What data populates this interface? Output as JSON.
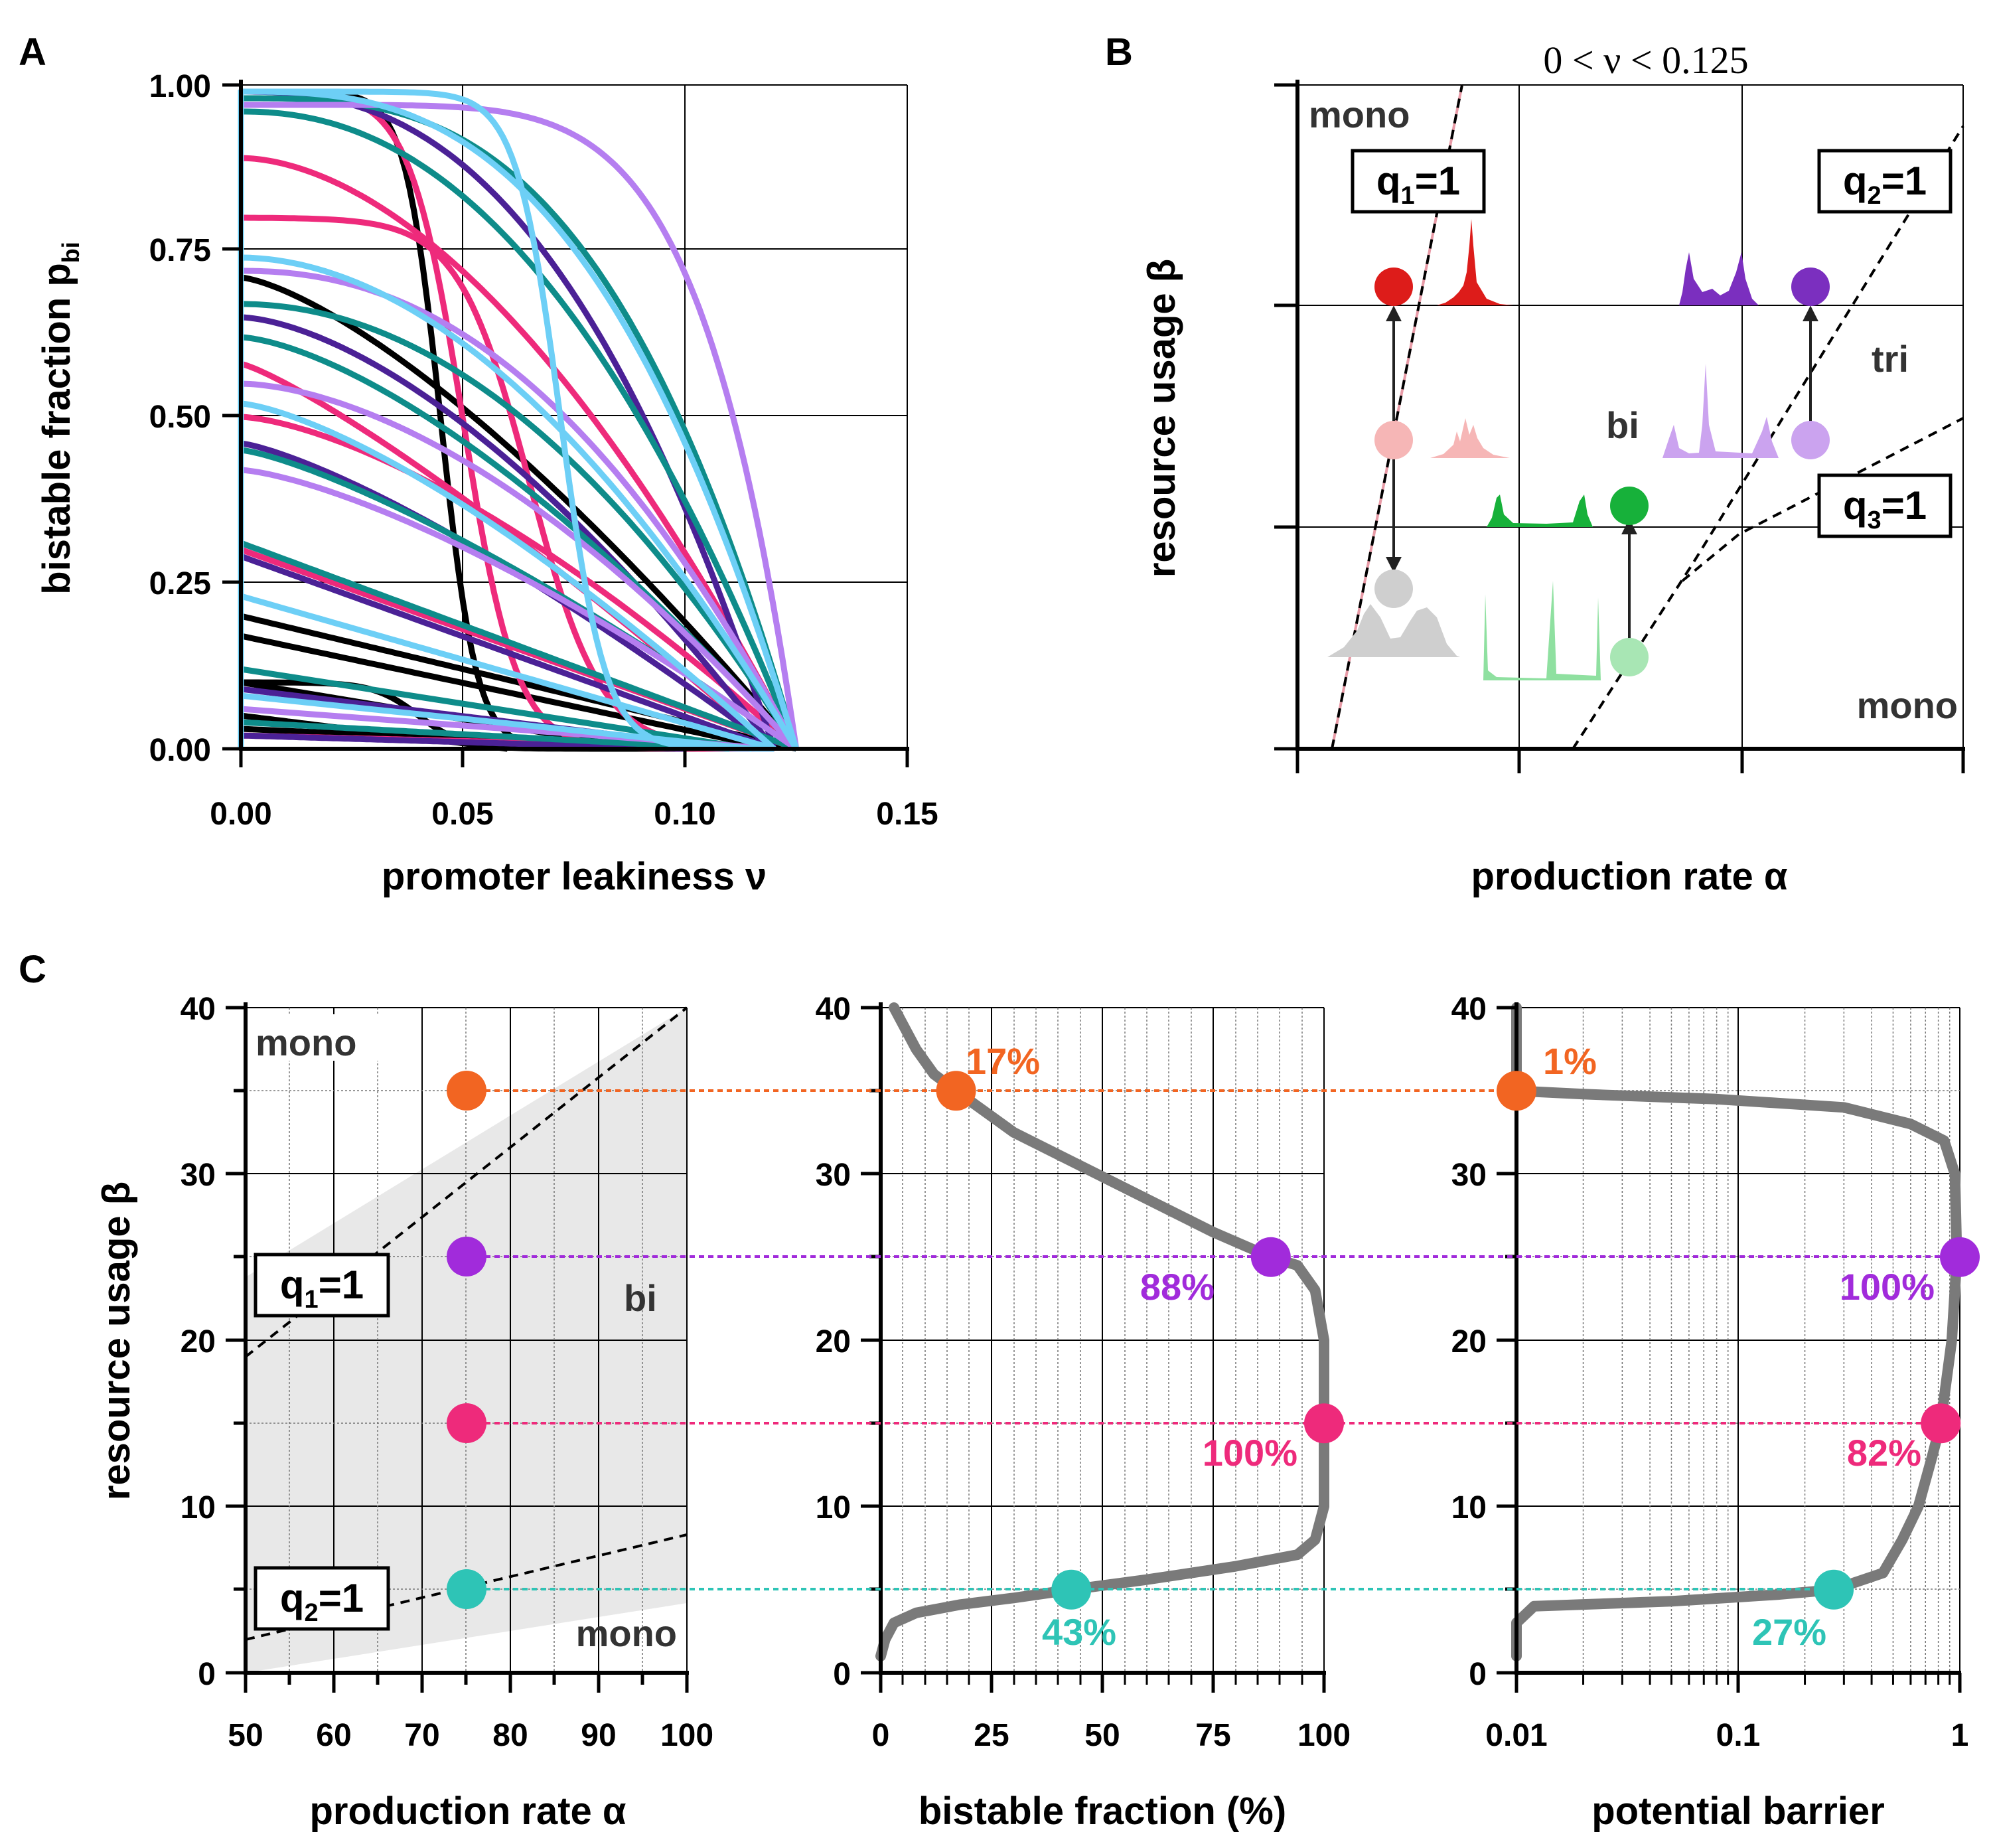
{
  "panels": {
    "A": {
      "label": "A",
      "xlabel": "promoter leakiness ν",
      "ylabel_main": "bistable fraction p",
      "ylabel_sub": "bi",
      "xticks": [
        "0.00",
        "0.05",
        "0.10",
        "0.15"
      ],
      "yticks": [
        "0.00",
        "0.25",
        "0.50",
        "0.75",
        "1.00"
      ]
    },
    "B": {
      "label": "B",
      "title": "0 < ν < 0.125",
      "xlabel": "production rate α",
      "ylabel": "resource usage β",
      "region_mono_top": "mono",
      "region_mono_bottom": "mono",
      "region_bi": "bi",
      "region_tri": "tri",
      "q1": "q",
      "q1_sub": "1",
      "q2": "q",
      "q2_sub": "2",
      "q3": "q",
      "q3_sub": "3",
      "eq": "=1"
    },
    "C": {
      "label": "C",
      "ylabel": "resource usage β",
      "p1_xlabel": "production rate α",
      "p1_xticks": [
        "50",
        "60",
        "70",
        "80",
        "90",
        "100"
      ],
      "p1_mono_top": "mono",
      "p1_mono_bottom": "mono",
      "p1_bi": "bi",
      "q1": "q",
      "q1_sub": "1",
      "q2": "q",
      "q2_sub": "2",
      "eq": "=1",
      "p2_xlabel": "bistable fraction (%)",
      "p2_xticks": [
        "0",
        "25",
        "50",
        "75",
        "100"
      ],
      "p3_xlabel": "potential barrier",
      "p3_xticks": [
        "0.01",
        "0.1",
        "1"
      ],
      "yticks": [
        "0",
        "10",
        "20",
        "30",
        "40"
      ],
      "bf_labels": [
        "17%",
        "88%",
        "100%",
        "43%"
      ],
      "pb_labels": [
        "1%",
        "100%",
        "82%",
        "27%"
      ]
    }
  },
  "colors": {
    "orange": "#f26522",
    "purple": "#a12bdb",
    "pink": "#ee2a7b",
    "teal": "#2ec4b6",
    "gray_curve": "#7a7a7a",
    "teal_curve": "#0e8c8a",
    "lilac": "#b57ef0",
    "skyblue": "#6dcff6",
    "navy_purple": "#4b2196",
    "red": "#dd1c1a",
    "green": "#17b13a"
  },
  "chart_data": [
    {
      "panel": "A",
      "type": "line",
      "title": "",
      "xlabel": "promoter leakiness ν",
      "ylabel": "bistable fraction p_bi",
      "xlim": [
        0,
        0.15
      ],
      "ylim": [
        0,
        1
      ],
      "grid": true,
      "series": [
        {
          "color": "black",
          "start": 0.99,
          "mode": "sigmoid",
          "mid": 0.045,
          "w": 0.004
        },
        {
          "color": "black",
          "start": 0.71,
          "mode": "decay",
          "end": 0.125,
          "shape": 1.4
        },
        {
          "color": "black",
          "start": 0.2,
          "mode": "linear",
          "end": 0.125
        },
        {
          "color": "black",
          "start": 0.17,
          "mode": "linear",
          "end": 0.12
        },
        {
          "color": "black",
          "start": 0.1,
          "mode": "linear",
          "end": 0.09
        },
        {
          "color": "black",
          "start": 0.05,
          "mode": "linear",
          "end": 0.06
        },
        {
          "color": "black",
          "start": 0.03,
          "mode": "linear",
          "end": 0.1
        },
        {
          "color": "black",
          "start": 0.1,
          "mode": "sigmoid",
          "mid": 0.04,
          "w": 0.005
        },
        {
          "color": "pink",
          "start": 0.99,
          "mode": "sigmoid",
          "mid": 0.05,
          "w": 0.006
        },
        {
          "color": "pink",
          "start": 0.89,
          "mode": "decay",
          "end": 0.125,
          "shape": 1.8
        },
        {
          "color": "pink",
          "start": 0.8,
          "mode": "sigmoid",
          "mid": 0.065,
          "w": 0.008
        },
        {
          "color": "pink",
          "start": 0.58,
          "mode": "decay",
          "end": 0.12,
          "shape": 1.2
        },
        {
          "color": "pink",
          "start": 0.5,
          "mode": "decay",
          "end": 0.125,
          "shape": 1.5
        },
        {
          "color": "pink",
          "start": 0.3,
          "mode": "linear",
          "end": 0.125
        },
        {
          "color": "pink",
          "start": 0.02,
          "mode": "linear",
          "end": 0.12
        },
        {
          "color": "navy_purple",
          "start": 0.99,
          "mode": "decay",
          "end": 0.12,
          "shape": 2.5
        },
        {
          "color": "navy_purple",
          "start": 0.65,
          "mode": "decay",
          "end": 0.12,
          "shape": 1.6
        },
        {
          "color": "navy_purple",
          "start": 0.46,
          "mode": "decay",
          "end": 0.12,
          "shape": 1.3
        },
        {
          "color": "navy_purple",
          "start": 0.29,
          "mode": "linear",
          "end": 0.12
        },
        {
          "color": "navy_purple",
          "start": 0.09,
          "mode": "linear",
          "end": 0.11
        },
        {
          "color": "navy_purple",
          "start": 0.02,
          "mode": "linear",
          "end": 0.1
        },
        {
          "color": "teal",
          "start": 0.98,
          "mode": "decay",
          "end": 0.125,
          "shape": 3.0
        },
        {
          "color": "teal",
          "start": 0.96,
          "mode": "decay",
          "end": 0.125,
          "shape": 2.2
        },
        {
          "color": "teal",
          "start": 0.67,
          "mode": "decay",
          "end": 0.125,
          "shape": 2.0
        },
        {
          "color": "teal",
          "start": 0.62,
          "mode": "decay",
          "end": 0.125,
          "shape": 1.5
        },
        {
          "color": "teal",
          "start": 0.45,
          "mode": "decay",
          "end": 0.125,
          "shape": 1.3
        },
        {
          "color": "teal",
          "start": 0.31,
          "mode": "linear",
          "end": 0.125
        },
        {
          "color": "teal",
          "start": 0.12,
          "mode": "linear",
          "end": 0.115
        },
        {
          "color": "teal",
          "start": 0.04,
          "mode": "linear",
          "end": 0.11
        },
        {
          "color": "lilac",
          "start": 0.97,
          "mode": "decay",
          "end": 0.125,
          "shape": 6.0
        },
        {
          "color": "lilac",
          "start": 0.72,
          "mode": "decay",
          "end": 0.125,
          "shape": 2.2
        },
        {
          "color": "lilac",
          "start": 0.55,
          "mode": "decay",
          "end": 0.125,
          "shape": 1.7
        },
        {
          "color": "lilac",
          "start": 0.42,
          "mode": "decay",
          "end": 0.125,
          "shape": 1.4
        },
        {
          "color": "lilac",
          "start": 0.06,
          "mode": "linear",
          "end": 0.12
        },
        {
          "color": "skyblue",
          "start": 0.99,
          "mode": "sigmoid",
          "mid": 0.072,
          "w": 0.005
        },
        {
          "color": "skyblue",
          "start": 0.99,
          "mode": "decay",
          "end": 0.125,
          "shape": 2.8
        },
        {
          "color": "skyblue",
          "start": 0.74,
          "mode": "decay",
          "end": 0.125,
          "shape": 1.9
        },
        {
          "color": "skyblue",
          "start": 0.52,
          "mode": "decay",
          "end": 0.12,
          "shape": 1.4
        },
        {
          "color": "skyblue",
          "start": 0.23,
          "mode": "linear",
          "end": 0.12
        },
        {
          "color": "skyblue",
          "start": 0.08,
          "mode": "linear",
          "end": 0.115
        }
      ]
    },
    {
      "panel": "B",
      "type": "diagram",
      "title": "0 < ν < 0.125",
      "xlabel": "production rate α",
      "ylabel": "resource usage β",
      "regions": [
        "mono",
        "bi",
        "tri",
        "mono"
      ],
      "boundaries": [
        "q1=1",
        "q2=1",
        "q3=1"
      ]
    },
    {
      "panel": "C1",
      "type": "diagram",
      "xlabel": "production rate α",
      "ylabel": "resource usage β",
      "xlim": [
        50,
        100
      ],
      "ylim": [
        0,
        40
      ],
      "q1_line": [
        [
          50,
          19
        ],
        [
          100,
          40
        ]
      ],
      "q2_line": [
        [
          50,
          2
        ],
        [
          100,
          8.3
        ]
      ],
      "points": [
        {
          "alpha": 75,
          "beta": 35,
          "color": "orange"
        },
        {
          "alpha": 75,
          "beta": 25,
          "color": "purple"
        },
        {
          "alpha": 75,
          "beta": 15,
          "color": "pink"
        },
        {
          "alpha": 75,
          "beta": 5,
          "color": "teal"
        }
      ]
    },
    {
      "panel": "C2",
      "type": "line",
      "xlabel": "bistable fraction (%)",
      "ylabel": "resource usage β",
      "xlim": [
        0,
        100
      ],
      "ylim": [
        0,
        40
      ],
      "curve": [
        [
          0,
          1
        ],
        [
          1,
          2
        ],
        [
          3,
          3
        ],
        [
          8,
          3.6
        ],
        [
          18,
          4.1
        ],
        [
          30,
          4.5
        ],
        [
          43,
          5
        ],
        [
          60,
          5.6
        ],
        [
          80,
          6.4
        ],
        [
          94,
          7.1
        ],
        [
          98,
          8
        ],
        [
          100,
          10
        ],
        [
          100,
          20
        ],
        [
          98,
          23
        ],
        [
          94,
          24.5
        ],
        [
          88,
          25
        ],
        [
          75,
          26.5
        ],
        [
          60,
          28.5
        ],
        [
          45,
          30.5
        ],
        [
          30,
          32.5
        ],
        [
          17,
          35
        ],
        [
          12,
          36
        ],
        [
          8,
          37.5
        ],
        [
          5,
          39
        ],
        [
          3,
          40
        ]
      ],
      "points": [
        {
          "x": 17,
          "y": 35,
          "label": "17%",
          "color": "orange"
        },
        {
          "x": 88,
          "y": 25,
          "label": "88%",
          "color": "purple"
        },
        {
          "x": 100,
          "y": 15,
          "label": "100%",
          "color": "pink"
        },
        {
          "x": 43,
          "y": 5,
          "label": "43%",
          "color": "teal"
        }
      ]
    },
    {
      "panel": "C3",
      "type": "line",
      "xscale": "log",
      "xlabel": "potential barrier",
      "ylabel": "resource usage β",
      "xlim": [
        0.01,
        1
      ],
      "ylim": [
        0,
        40
      ],
      "curve": [
        [
          0.01,
          1
        ],
        [
          0.01,
          3
        ],
        [
          0.012,
          4
        ],
        [
          0.05,
          4.3
        ],
        [
          0.15,
          4.7
        ],
        [
          0.27,
          5
        ],
        [
          0.45,
          6
        ],
        [
          0.55,
          8
        ],
        [
          0.65,
          10
        ],
        [
          0.75,
          13
        ],
        [
          0.82,
          15
        ],
        [
          0.92,
          20
        ],
        [
          0.97,
          25
        ],
        [
          0.95,
          30
        ],
        [
          0.85,
          32
        ],
        [
          0.6,
          33
        ],
        [
          0.3,
          34
        ],
        [
          0.08,
          34.5
        ],
        [
          0.02,
          34.8
        ],
        [
          0.01,
          35
        ],
        [
          0.01,
          40
        ]
      ],
      "points": [
        {
          "x": 0.01,
          "y": 35,
          "label": "1%",
          "color": "orange"
        },
        {
          "x": 1,
          "y": 25,
          "label": "100%",
          "color": "purple"
        },
        {
          "x": 0.82,
          "y": 15,
          "label": "82%",
          "color": "pink"
        },
        {
          "x": 0.27,
          "y": 5,
          "label": "27%",
          "color": "teal"
        }
      ]
    }
  ]
}
